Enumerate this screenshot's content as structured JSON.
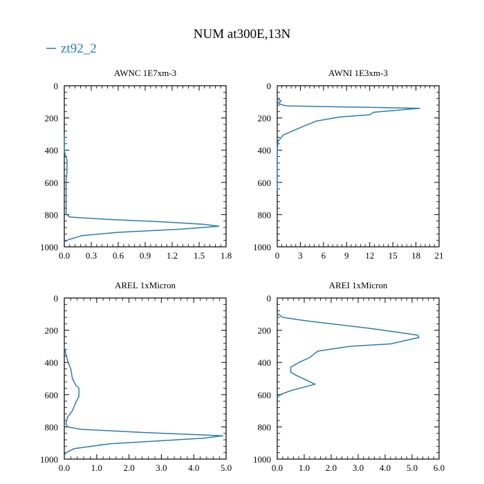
{
  "figure": {
    "title": "NUM at300E,13N",
    "legend_label": "zt92_2",
    "series_color": "#2a7bb0"
  },
  "chart_data": [
    {
      "type": "line",
      "title": "AWNC  1E7xm-3",
      "xlabel": "",
      "ylabel": "",
      "xlim": [
        0,
        1.8
      ],
      "ylim": [
        1000,
        0
      ],
      "y_inverted": true,
      "grid": false,
      "xticks": [
        "0.0",
        "0.3",
        "0.6",
        "0.9",
        "1.2",
        "1.5",
        "1.8"
      ],
      "yticks": [
        "0",
        "200",
        "400",
        "600",
        "800",
        "1000"
      ],
      "series": [
        {
          "name": "zt92_2",
          "x": [
            0.0,
            0.0,
            0.01,
            0.03,
            0.03,
            0.02,
            0.02,
            0.02,
            0.03,
            0.06,
            0.5,
            1.1,
            1.55,
            1.72,
            1.3,
            0.6,
            0.2,
            0.05,
            0.0
          ],
          "y": [
            300,
            400,
            430,
            460,
            540,
            580,
            700,
            795,
            800,
            815,
            830,
            845,
            860,
            872,
            890,
            910,
            930,
            955,
            970
          ]
        }
      ]
    },
    {
      "type": "line",
      "title": "AWNI  1E3xm-3",
      "xlabel": "",
      "ylabel": "",
      "xlim": [
        0,
        21
      ],
      "ylim": [
        1000,
        0
      ],
      "y_inverted": true,
      "grid": false,
      "xticks": [
        "0",
        "3",
        "6",
        "9",
        "12",
        "15",
        "18",
        "21"
      ],
      "yticks": [
        "0",
        "200",
        "400",
        "600",
        "800",
        "1000"
      ],
      "series": [
        {
          "name": "zt92_2",
          "x": [
            0.0,
            0.2,
            0.5,
            0.1,
            0.4,
            1.2,
            18.5,
            12.5,
            12.0,
            8.0,
            5.0,
            3.0,
            0.8,
            0.1,
            0.0,
            0.0
          ],
          "y": [
            70,
            85,
            95,
            105,
            115,
            125,
            140,
            165,
            180,
            195,
            220,
            260,
            305,
            345,
            400,
            650
          ]
        }
      ]
    },
    {
      "type": "line",
      "title": "AREL  1xMicron",
      "xlabel": "",
      "ylabel": "",
      "xlim": [
        0,
        5.0
      ],
      "ylim": [
        1000,
        0
      ],
      "y_inverted": true,
      "grid": false,
      "xticks": [
        "0.0",
        "1.0",
        "2.0",
        "3.0",
        "4.0",
        "5.0"
      ],
      "yticks": [
        "0",
        "200",
        "400",
        "600",
        "800",
        "1000"
      ],
      "series": [
        {
          "name": "zt92_2",
          "x": [
            0.0,
            0.05,
            0.12,
            0.2,
            0.25,
            0.35,
            0.45,
            0.45,
            0.35,
            0.25,
            0.1,
            0.05,
            0.1,
            0.5,
            2.5,
            4.9,
            4.3,
            1.4,
            0.3,
            0.05,
            0.0
          ],
          "y": [
            300,
            350,
            400,
            440,
            500,
            540,
            560,
            610,
            650,
            700,
            740,
            780,
            800,
            815,
            835,
            855,
            870,
            905,
            935,
            960,
            980
          ]
        }
      ]
    },
    {
      "type": "line",
      "title": "AREI  1xMicron",
      "xlabel": "",
      "ylabel": "",
      "xlim": [
        0,
        6.0
      ],
      "ylim": [
        1000,
        0
      ],
      "y_inverted": true,
      "grid": false,
      "xticks": [
        "0.0",
        "1.0",
        "2.0",
        "3.0",
        "4.0",
        "5.0",
        "6.0"
      ],
      "yticks": [
        "0",
        "200",
        "400",
        "600",
        "800",
        "1000"
      ],
      "series": [
        {
          "name": "zt92_2",
          "x": [
            0.0,
            0.2,
            1.0,
            3.5,
            5.2,
            5.25,
            4.2,
            2.7,
            1.5,
            1.2,
            0.8,
            0.5,
            0.5,
            0.7,
            1.4,
            0.5,
            0.1,
            0.0
          ],
          "y": [
            95,
            120,
            140,
            190,
            230,
            245,
            285,
            300,
            330,
            370,
            400,
            430,
            460,
            480,
            535,
            575,
            600,
            620
          ]
        }
      ]
    }
  ]
}
